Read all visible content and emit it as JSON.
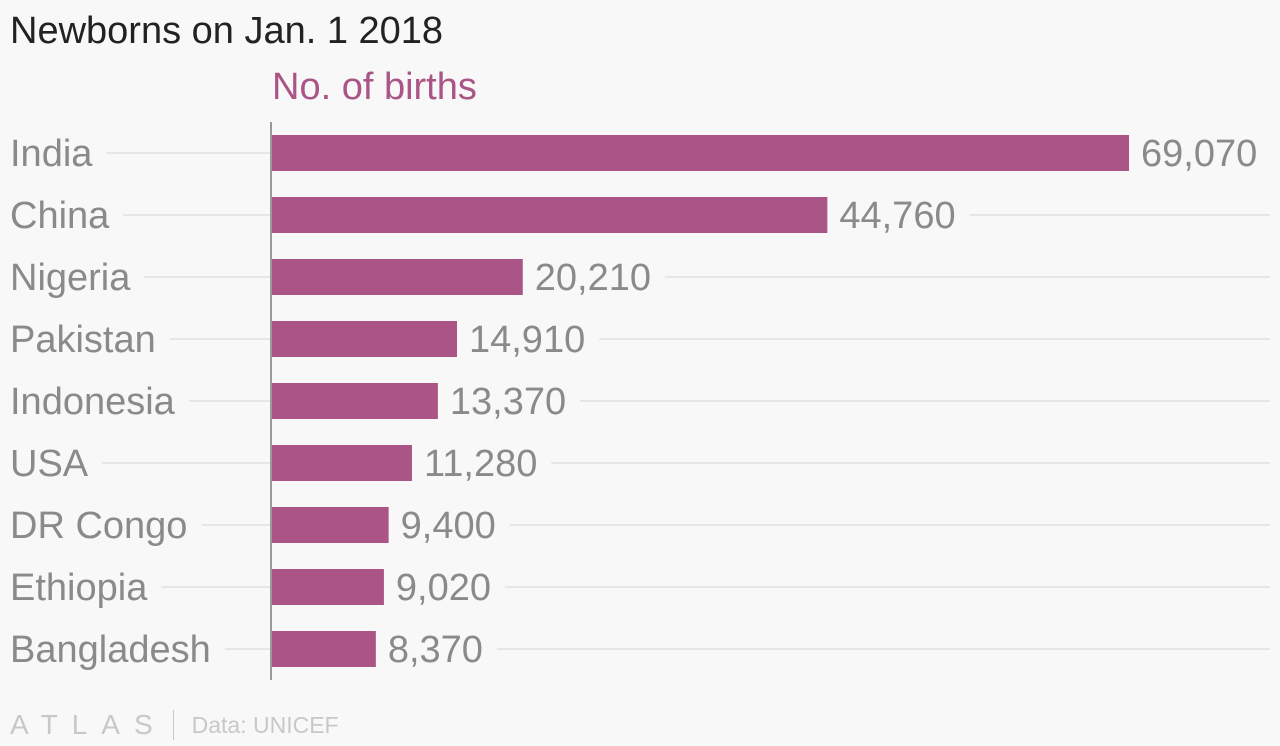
{
  "title": "Newborns on Jan. 1 2018",
  "colors": {
    "bar": "#aa5586",
    "category_text": "#8a8a8a",
    "value_text": "#8a8a8a",
    "gridline": "#e6e6e6",
    "axis": "#9a9a9a"
  },
  "chart_data": {
    "type": "bar",
    "orientation": "horizontal",
    "categories": [
      "India",
      "China",
      "Nigeria",
      "Pakistan",
      "Indonesia",
      "USA",
      "DR Congo",
      "Ethiopia",
      "Bangladesh"
    ],
    "series": [
      {
        "name": "No. of births",
        "values": [
          69070,
          44760,
          20210,
          14910,
          13370,
          11280,
          9400,
          9020,
          8370
        ]
      }
    ],
    "value_labels": [
      "69,070",
      "44,760",
      "20,210",
      "14,910",
      "13,370",
      "11,280",
      "9,400",
      "9,020",
      "8,370"
    ],
    "xlim": [
      0,
      69070
    ],
    "grid": true,
    "legend": "top"
  },
  "footer": {
    "logo": "ATLAS",
    "source": "Data: UNICEF"
  }
}
